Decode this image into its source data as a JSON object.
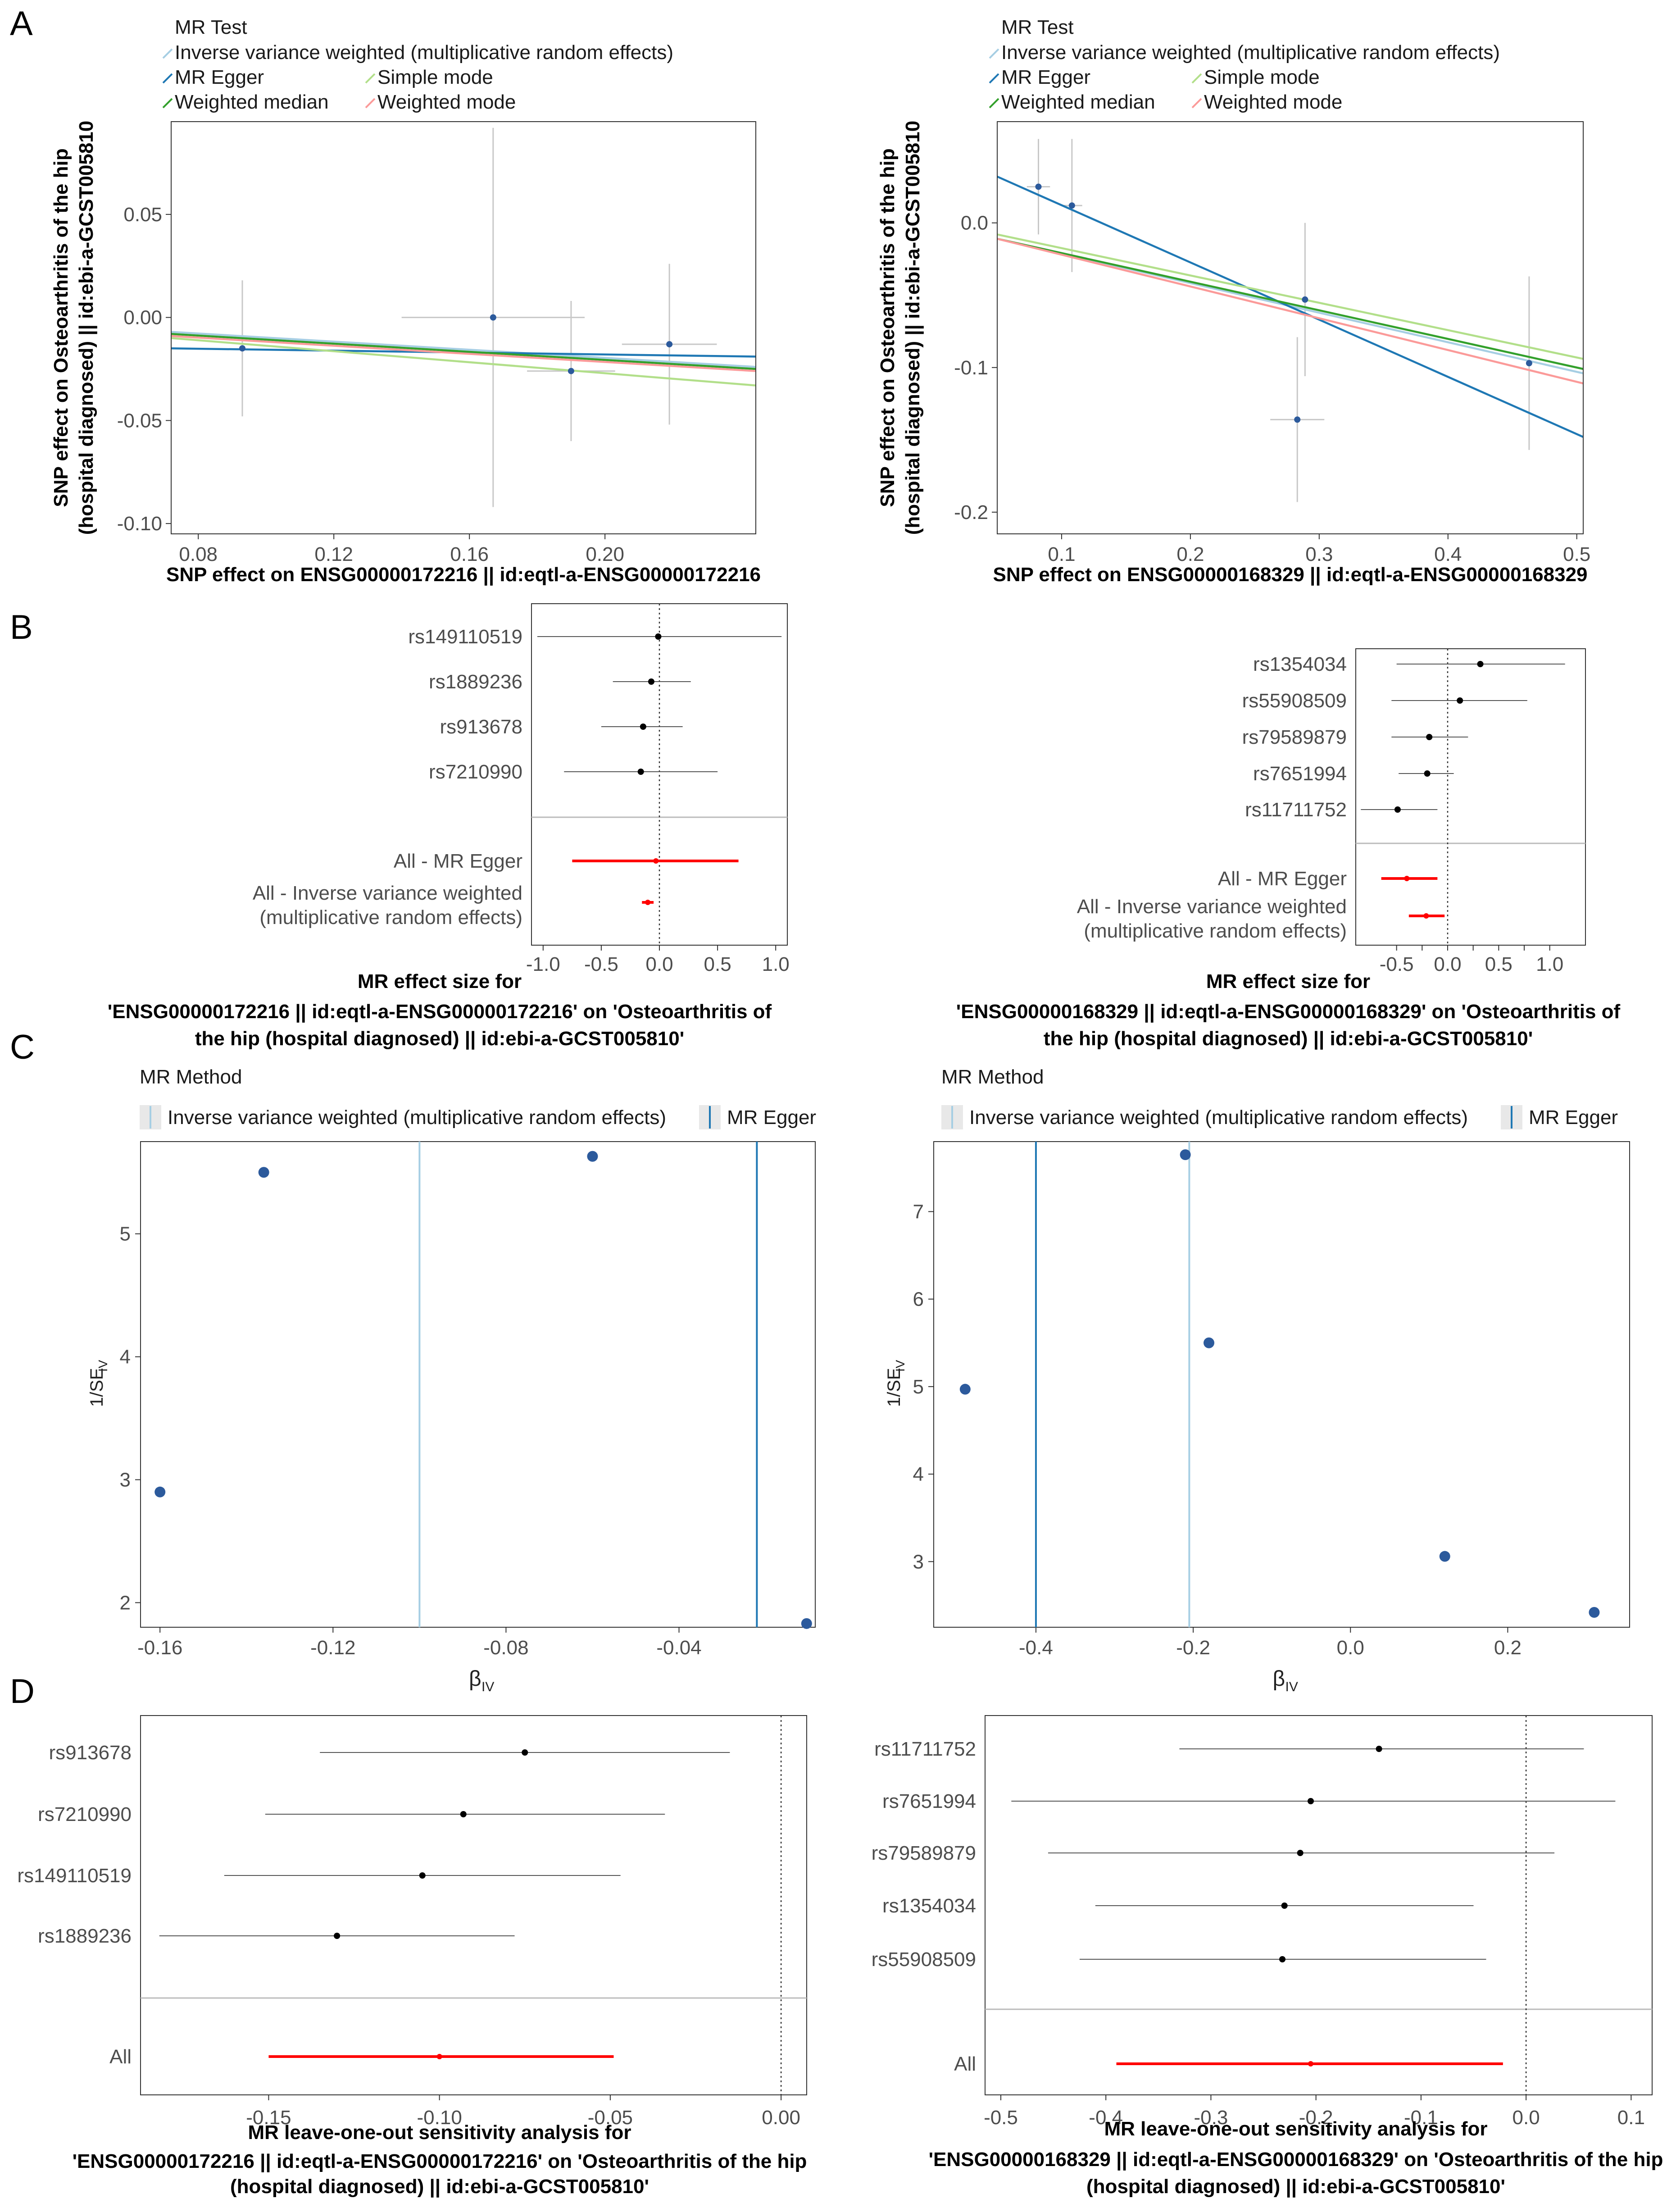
{
  "panel_letters": [
    "A",
    "B",
    "C",
    "D"
  ],
  "colors": {
    "ivw": "#a6cee3",
    "egger": "#1f78b4",
    "simple_mode": "#b2df8a",
    "weighted_median": "#33a02c",
    "weighted_mode": "#fb9a99",
    "point": "#2c5a9c",
    "red": "#ff0000",
    "grey": "#c8c8c8"
  },
  "legend_scatter": {
    "title": "MR Test",
    "items": [
      {
        "label": "Inverse variance weighted (multiplicative random effects)",
        "key": "ivw"
      },
      {
        "label": "MR Egger",
        "key": "egger"
      },
      {
        "label": "Simple mode",
        "key": "simple_mode"
      },
      {
        "label": "Weighted median",
        "key": "weighted_median"
      },
      {
        "label": "Weighted mode",
        "key": "weighted_mode"
      }
    ]
  },
  "legend_funnel": {
    "title": "MR Method",
    "items": [
      {
        "label": "Inverse variance weighted (multiplicative random effects)",
        "key": "ivw"
      },
      {
        "label": "MR Egger",
        "key": "egger"
      }
    ]
  },
  "chart_data": [
    {
      "id": "A1",
      "type": "scatter",
      "xlabel": "SNP effect on ENSG00000172216 || id:eqtl-a-ENSG00000172216",
      "ylabel": [
        "SNP effect on Osteoarthritis of the hip",
        "(hospital diagnosed) || id:ebi-a-GCST005810"
      ],
      "xlim": [
        0.072,
        0.2445
      ],
      "ylim": [
        -0.105,
        0.095
      ],
      "xticks": [
        0.08,
        0.12,
        0.16,
        0.2
      ],
      "xtick_labels": [
        "0.08",
        "0.12",
        "0.16",
        "0.20"
      ],
      "yticks": [
        0.05,
        0.0,
        -0.05,
        -0.1
      ],
      "ytick_labels": [
        "0.05",
        "0.00",
        "-0.05",
        "-0.10"
      ],
      "points": [
        {
          "x": 0.093,
          "y": -0.015,
          "xerr": 0.0,
          "yerr": 0.033
        },
        {
          "x": 0.167,
          "y": 0.0,
          "xerr": 0.027,
          "yerr": 0.092
        },
        {
          "x": 0.19,
          "y": -0.026,
          "xerr": 0.013,
          "yerr": 0.034
        },
        {
          "x": 0.219,
          "y": -0.013,
          "xerr": 0.014,
          "yerr": 0.039
        }
      ],
      "lines": [
        {
          "key": "ivw",
          "x1": 0.072,
          "y1": -0.007,
          "x2": 0.2445,
          "y2": -0.024
        },
        {
          "key": "egger",
          "x1": 0.072,
          "y1": -0.015,
          "x2": 0.2445,
          "y2": -0.019
        },
        {
          "key": "simple_mode",
          "x1": 0.072,
          "y1": -0.01,
          "x2": 0.2445,
          "y2": -0.033
        },
        {
          "key": "weighted_median",
          "x1": 0.072,
          "y1": -0.008,
          "x2": 0.2445,
          "y2": -0.025
        },
        {
          "key": "weighted_mode",
          "x1": 0.072,
          "y1": -0.009,
          "x2": 0.2445,
          "y2": -0.026
        }
      ]
    },
    {
      "id": "A2",
      "type": "scatter",
      "xlabel": "SNP effect on ENSG00000168329 || id:eqtl-a-ENSG00000168329",
      "ylabel": [
        "SNP effect on Osteoarthritis of the hip",
        "(hospital diagnosed) || id:ebi-a-GCST005810"
      ],
      "xlim": [
        0.05,
        0.505
      ],
      "ylim": [
        -0.215,
        0.07
      ],
      "xticks": [
        0.1,
        0.2,
        0.3,
        0.4,
        0.5
      ],
      "xtick_labels": [
        "0.1",
        "0.2",
        "0.3",
        "0.4",
        "0.5"
      ],
      "yticks": [
        0.0,
        -0.1,
        -0.2
      ],
      "ytick_labels": [
        "0.0",
        "-0.1",
        "-0.2"
      ],
      "points": [
        {
          "x": 0.082,
          "y": 0.025,
          "xerr": 0.009,
          "yerr": 0.033
        },
        {
          "x": 0.108,
          "y": 0.012,
          "xerr": 0.008,
          "yerr": 0.046
        },
        {
          "x": 0.289,
          "y": -0.053,
          "xerr": 0.0,
          "yerr": 0.053
        },
        {
          "x": 0.283,
          "y": -0.136,
          "xerr": 0.021,
          "yerr": 0.057
        },
        {
          "x": 0.463,
          "y": -0.097,
          "xerr": 0.0,
          "yerr": 0.06
        }
      ],
      "lines": [
        {
          "key": "ivw",
          "x1": 0.05,
          "y1": -0.011,
          "x2": 0.505,
          "y2": -0.104
        },
        {
          "key": "egger",
          "x1": 0.05,
          "y1": 0.032,
          "x2": 0.505,
          "y2": -0.148
        },
        {
          "key": "simple_mode",
          "x1": 0.05,
          "y1": -0.008,
          "x2": 0.505,
          "y2": -0.094
        },
        {
          "key": "weighted_median",
          "x1": 0.05,
          "y1": -0.011,
          "x2": 0.505,
          "y2": -0.101
        },
        {
          "key": "weighted_mode",
          "x1": 0.05,
          "y1": -0.011,
          "x2": 0.505,
          "y2": -0.111
        }
      ]
    },
    {
      "id": "B1",
      "type": "forest",
      "xlabel": [
        "MR effect size for",
        "'ENSG00000172216 || id:eqtl-a-ENSG00000172216' on 'Osteoarthritis of",
        "the hip (hospital diagnosed) || id:ebi-a-GCST005810'"
      ],
      "xlim": [
        -1.1,
        1.1
      ],
      "xticks": [
        -1.0,
        -0.5,
        0.0,
        0.5,
        1.0
      ],
      "xtick_labels": [
        "-1.0",
        "-0.5",
        "0.0",
        "0.5",
        "1.0"
      ],
      "ref_line": 0,
      "snps": [
        {
          "label": "rs149110519",
          "est": -0.01,
          "lo": -1.05,
          "hi": 1.05
        },
        {
          "label": "rs1889236",
          "est": -0.07,
          "lo": -0.4,
          "hi": 0.27
        },
        {
          "label": "rs913678",
          "est": -0.14,
          "lo": -0.5,
          "hi": 0.2
        },
        {
          "label": "rs7210990",
          "est": -0.16,
          "lo": -0.82,
          "hi": 0.5
        }
      ],
      "summary": [
        {
          "label": [
            "All - MR Egger"
          ],
          "est": -0.03,
          "lo": -0.75,
          "hi": 0.68
        },
        {
          "label": [
            "All - Inverse variance weighted",
            "(multiplicative random effects)"
          ],
          "est": -0.1,
          "lo": -0.15,
          "hi": -0.05
        }
      ]
    },
    {
      "id": "B2",
      "type": "forest",
      "xlabel": [
        "MR effect size for",
        "'ENSG00000168329 || id:eqtl-a-ENSG00000168329' on 'Osteoarthritis of",
        "the hip (hospital diagnosed) || id:ebi-a-GCST005810'"
      ],
      "xlim": [
        -0.9,
        1.35
      ],
      "xticks": [
        -0.5,
        -0.25,
        0.0,
        0.25,
        0.5,
        0.75,
        1.0
      ],
      "xtick_labels": [
        "-0.5",
        "",
        "0.0",
        "",
        "0.5",
        "",
        "1.0"
      ],
      "ref_line": 0,
      "snps": [
        {
          "label": "rs1354034",
          "est": 0.32,
          "lo": -0.5,
          "hi": 1.15
        },
        {
          "label": "rs55908509",
          "est": 0.12,
          "lo": -0.55,
          "hi": 0.78
        },
        {
          "label": "rs79589879",
          "est": -0.18,
          "lo": -0.55,
          "hi": 0.2
        },
        {
          "label": "rs7651994",
          "est": -0.2,
          "lo": -0.48,
          "hi": 0.06
        },
        {
          "label": "rs11711752",
          "est": -0.49,
          "lo": -0.85,
          "hi": -0.1
        }
      ],
      "summary": [
        {
          "label": [
            "All - MR Egger"
          ],
          "est": -0.4,
          "lo": -0.65,
          "hi": -0.1
        },
        {
          "label": [
            "All - Inverse variance weighted",
            "(multiplicative random effects)"
          ],
          "est": -0.21,
          "lo": -0.38,
          "hi": -0.03
        }
      ]
    },
    {
      "id": "C1",
      "type": "funnel",
      "xlabel": "β",
      "xlabel_sub": "IV",
      "ylabel": "1/SE",
      "ylabel_sub": "IV",
      "xlim": [
        -0.1645,
        -0.0085
      ],
      "ylim": [
        1.8,
        5.75
      ],
      "xticks": [
        -0.16,
        -0.12,
        -0.08,
        -0.04
      ],
      "xtick_labels": [
        "-0.16",
        "-0.12",
        "-0.08",
        "-0.04"
      ],
      "yticks": [
        2,
        3,
        4,
        5
      ],
      "ytick_labels": [
        "2",
        "3",
        "4",
        "5"
      ],
      "points": [
        {
          "x": -0.136,
          "y": 5.5
        },
        {
          "x": -0.06,
          "y": 5.63
        },
        {
          "x": -0.16,
          "y": 2.9
        },
        {
          "x": -0.0105,
          "y": 1.83
        }
      ],
      "vlines": [
        {
          "key": "ivw",
          "x": -0.1
        },
        {
          "key": "egger",
          "x": -0.022
        }
      ]
    },
    {
      "id": "C2",
      "type": "funnel",
      "xlabel": "β",
      "xlabel_sub": "IV",
      "ylabel": "1/SE",
      "ylabel_sub": "IV",
      "xlim": [
        -0.53,
        0.355
      ],
      "ylim": [
        2.25,
        7.8
      ],
      "xticks": [
        -0.4,
        -0.2,
        0.0,
        0.2
      ],
      "xtick_labels": [
        "-0.4",
        "-0.2",
        "0.0",
        "0.2"
      ],
      "yticks": [
        3,
        4,
        5,
        6,
        7
      ],
      "ytick_labels": [
        "3",
        "4",
        "5",
        "6",
        "7"
      ],
      "points": [
        {
          "x": -0.21,
          "y": 7.65
        },
        {
          "x": -0.18,
          "y": 5.5
        },
        {
          "x": -0.49,
          "y": 4.97
        },
        {
          "x": 0.12,
          "y": 3.06
        },
        {
          "x": 0.31,
          "y": 2.42
        }
      ],
      "vlines": [
        {
          "key": "egger",
          "x": -0.4
        },
        {
          "key": "ivw",
          "x": -0.205
        }
      ]
    },
    {
      "id": "D1",
      "type": "forest",
      "xlabel": [
        "MR leave-one-out sensitivity analysis for",
        "'ENSG00000172216 || id:eqtl-a-ENSG00000172216' on 'Osteoarthritis of the hip",
        "(hospital diagnosed) || id:ebi-a-GCST005810'"
      ],
      "xlim": [
        -0.1875,
        0.0075
      ],
      "xticks": [
        -0.15,
        -0.1,
        -0.05,
        0.0
      ],
      "xtick_labels": [
        "-0.15",
        "-0.10",
        "-0.05",
        "0.00"
      ],
      "ref_line": 0,
      "snps": [
        {
          "label": "rs913678",
          "est": -0.075,
          "lo": -0.135,
          "hi": -0.015
        },
        {
          "label": "rs7210990",
          "est": -0.093,
          "lo": -0.151,
          "hi": -0.034
        },
        {
          "label": "rs149110519",
          "est": -0.105,
          "lo": -0.163,
          "hi": -0.047
        },
        {
          "label": "rs1889236",
          "est": -0.13,
          "lo": -0.182,
          "hi": -0.078
        }
      ],
      "summary": [
        {
          "label": [
            "All"
          ],
          "est": -0.1,
          "lo": -0.15,
          "hi": -0.049
        }
      ]
    },
    {
      "id": "D2",
      "type": "forest",
      "xlabel": [
        "MR leave-one-out sensitivity analysis for",
        "'ENSG00000168329 || id:eqtl-a-ENSG00000168329' on 'Osteoarthritis of the hip",
        "(hospital diagnosed) || id:ebi-a-GCST005810'"
      ],
      "xlim": [
        -0.515,
        0.12
      ],
      "xticks": [
        -0.5,
        -0.4,
        -0.3,
        -0.2,
        -0.1,
        0.0,
        0.1
      ],
      "xtick_labels": [
        "-0.5",
        "-0.4",
        "-0.3",
        "-0.2",
        "-0.1",
        "0.0",
        "0.1"
      ],
      "ref_line": 0,
      "snps": [
        {
          "label": "rs11711752",
          "est": -0.14,
          "lo": -0.33,
          "hi": 0.055
        },
        {
          "label": "rs7651994",
          "est": -0.205,
          "lo": -0.49,
          "hi": 0.085
        },
        {
          "label": "rs79589879",
          "est": -0.215,
          "lo": -0.455,
          "hi": 0.027
        },
        {
          "label": "rs1354034",
          "est": -0.23,
          "lo": -0.41,
          "hi": -0.05
        },
        {
          "label": "rs55908509",
          "est": -0.232,
          "lo": -0.425,
          "hi": -0.038
        }
      ],
      "summary": [
        {
          "label": [
            "All"
          ],
          "est": -0.205,
          "lo": -0.39,
          "hi": -0.022
        }
      ]
    }
  ]
}
